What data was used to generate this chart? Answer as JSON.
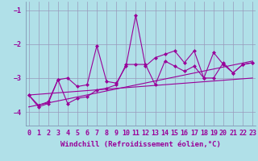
{
  "xlabel": "Windchill (Refroidissement éolien,°C)",
  "x": [
    0,
    1,
    2,
    3,
    4,
    5,
    6,
    7,
    8,
    9,
    10,
    11,
    12,
    13,
    14,
    15,
    16,
    17,
    18,
    19,
    20,
    21,
    22,
    23
  ],
  "line1": [
    -3.5,
    -3.8,
    -3.7,
    -3.05,
    -3.0,
    -3.25,
    -3.2,
    -2.05,
    -3.1,
    -3.15,
    -2.65,
    -1.15,
    -2.65,
    -2.4,
    -2.3,
    -2.2,
    -2.55,
    -2.2,
    -3.0,
    -2.25,
    -2.6,
    -2.85,
    -2.6,
    -2.55
  ],
  "line2": [
    -3.5,
    -3.85,
    -3.75,
    -3.05,
    -3.75,
    -3.6,
    -3.55,
    -3.35,
    -3.3,
    -3.2,
    -2.6,
    -2.6,
    -2.6,
    -3.2,
    -2.5,
    -2.65,
    -2.8,
    -2.65,
    -3.0,
    -3.0,
    -2.55,
    -2.85,
    -2.6,
    -2.55
  ],
  "trend1_x": [
    0,
    23
  ],
  "trend1_y": [
    -3.5,
    -3.0
  ],
  "trend2_x": [
    0,
    23
  ],
  "trend2_y": [
    -3.85,
    -2.5
  ],
  "ylim": [
    -4.4,
    -0.75
  ],
  "xlim": [
    0,
    23
  ],
  "yticks": [
    -4,
    -3,
    -2,
    -1
  ],
  "xticks": [
    0,
    1,
    2,
    3,
    4,
    5,
    6,
    7,
    8,
    9,
    10,
    11,
    12,
    13,
    14,
    15,
    16,
    17,
    18,
    19,
    20,
    21,
    22,
    23
  ],
  "bg_color": "#b0e0e8",
  "line_color": "#990099",
  "grid_color": "#9999bb",
  "xlabel_fontsize": 6.5,
  "tick_fontsize": 6.0,
  "marker_size": 2.5
}
